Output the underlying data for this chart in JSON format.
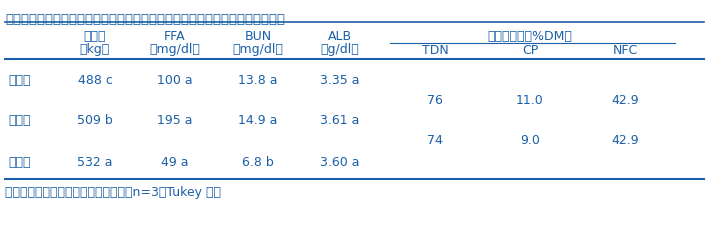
{
  "title": "表２　標準播イタリアンライグラスを利用した冬季放牧における牛の栄養状態",
  "footnote": "同一文字間に５％水準で有意差なし（n=3，Tukey 法）",
  "span_header": "放牧草成分（%DM）",
  "header1": [
    "牛体重",
    "FFA",
    "BUN",
    "ALB"
  ],
  "header2_left": [
    "（kg）",
    "（mg/dl）",
    "（mg/dl）",
    "（g/dl）"
  ],
  "header2_right": [
    "TDN",
    "CP",
    "NFC"
  ],
  "rows": [
    {
      "label": "放牧前",
      "bw": "488 c",
      "ffa": "100 a",
      "bun": "13.8 a",
      "alb": "3.35 a",
      "tdn2": "76",
      "cp2": "11.0",
      "nfc2": "42.9"
    },
    {
      "label": "４週後",
      "bw": "509 b",
      "ffa": "195 a",
      "bun": "14.9 a",
      "alb": "3.61 a",
      "tdn2": "74",
      "cp2": "9.0",
      "nfc2": "42.9"
    },
    {
      "label": "８週後",
      "bw": "532 a",
      "ffa": "49 a",
      "bun": "6.8 b",
      "alb": "3.60 a",
      "tdn2": "",
      "cp2": "",
      "nfc2": ""
    }
  ],
  "text_color": "#1a5fa8",
  "bg_color": "#ffffff",
  "title_fontsize": 9.5,
  "header_fontsize": 9.0,
  "cell_fontsize": 9.0,
  "footnote_fontsize": 9.0
}
